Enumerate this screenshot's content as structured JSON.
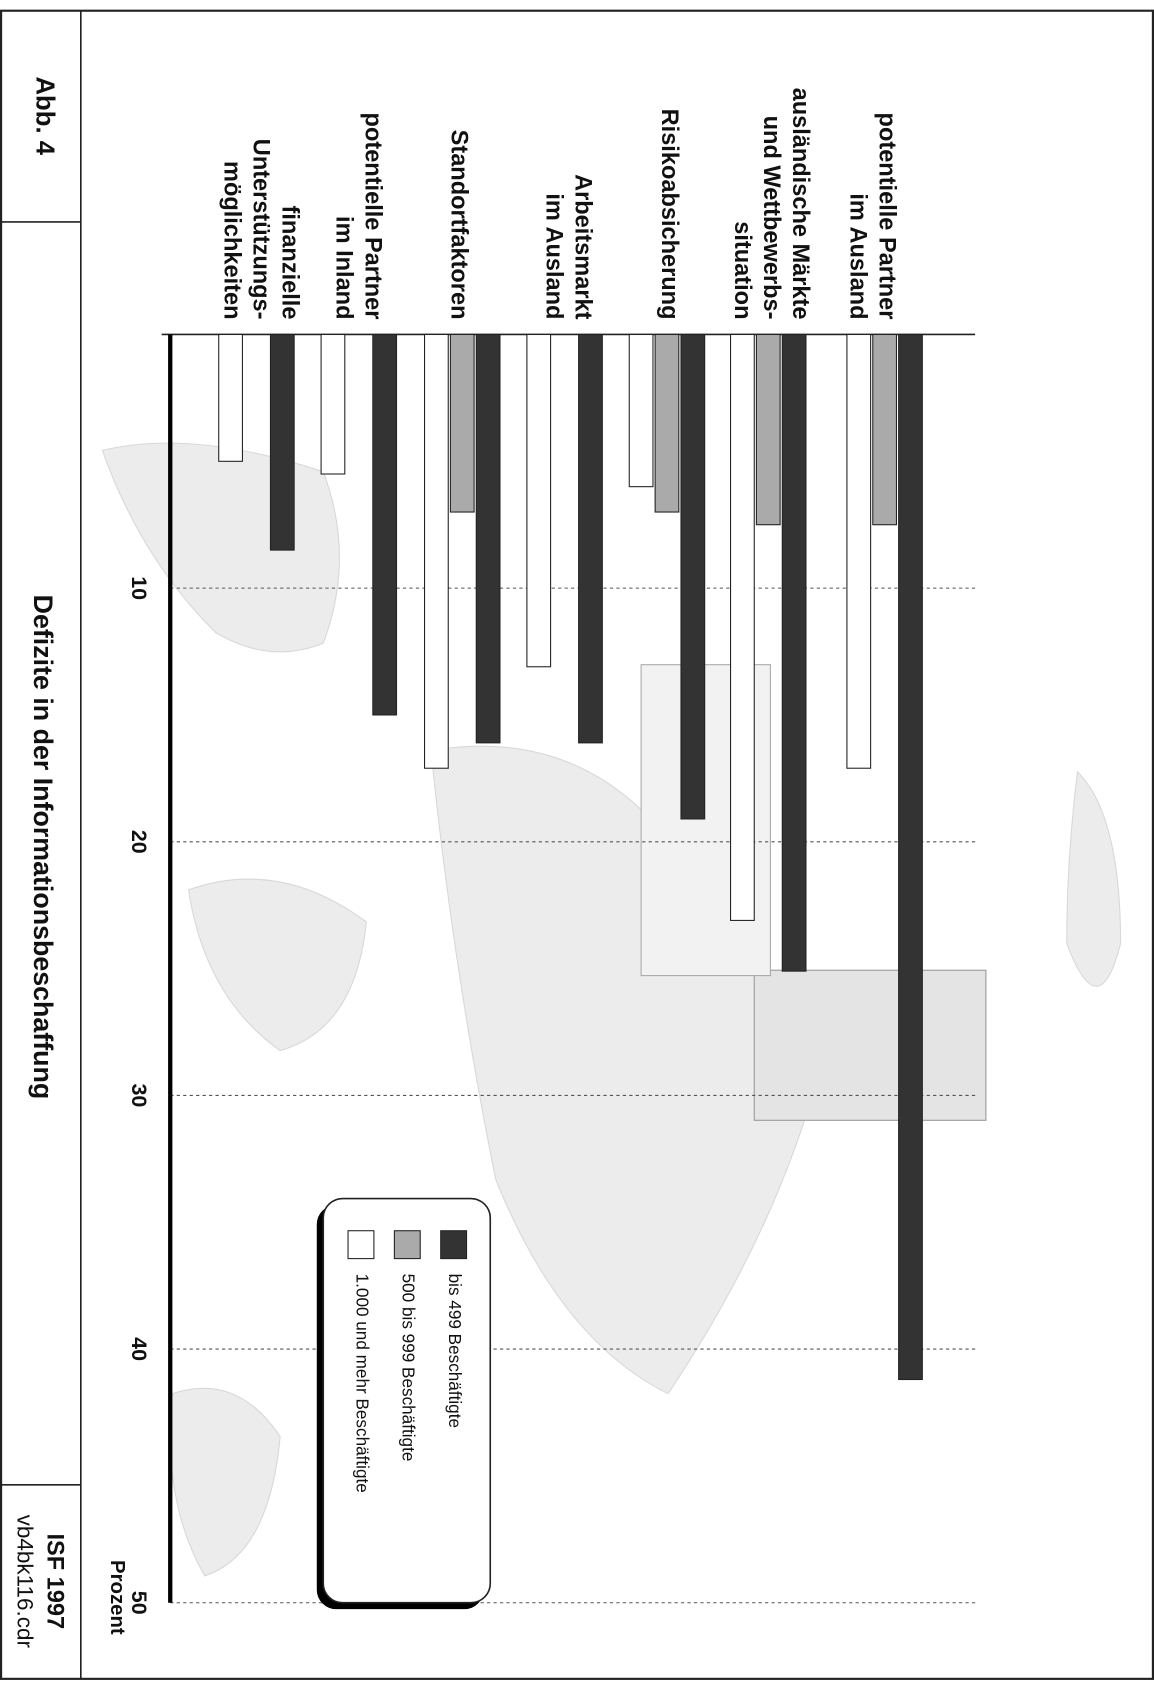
{
  "figure_label": "Abb. 4",
  "footer": {
    "organization": "ISF 1997",
    "file": "vb4bk116.cdr"
  },
  "chart_data": {
    "type": "bar",
    "title": "Defizite in der Informationsbeschaffung",
    "y_label": "Prozent",
    "categories": [
      [
        "potentielle Partner",
        "im Ausland"
      ],
      [
        "ausländische Märkte",
        "und Wettbewerbs-",
        "situation"
      ],
      [
        "Risikoabsicherung"
      ],
      [
        "Arbeitsmarkt",
        "im Ausland"
      ],
      [
        "Standortfaktoren"
      ],
      [
        "potentielle Partner",
        "im Inland"
      ],
      [
        "finanzielle",
        "Unterstützungs-",
        "möglichkeiten"
      ]
    ],
    "series": [
      {
        "name": "bis 499 Beschäftigte",
        "color": "#333333",
        "values": [
          41.2,
          25.1,
          19.1,
          16.1,
          16.1,
          15.0,
          8.5
        ]
      },
      {
        "name": "500 bis 999 Beschäftigte",
        "color": "#aaaaaa",
        "values": [
          7.5,
          7.5,
          7.0,
          null,
          7.0,
          null,
          null
        ]
      },
      {
        "name": "1.000 und mehr Beschäftigte",
        "color": "#ffffff",
        "values": [
          17.1,
          23.1,
          6.0,
          13.1,
          17.1,
          5.5,
          5.0
        ]
      }
    ],
    "ylim": [
      0,
      50
    ],
    "yticks": [
      10,
      20,
      30,
      40,
      50
    ],
    "grid": true
  }
}
